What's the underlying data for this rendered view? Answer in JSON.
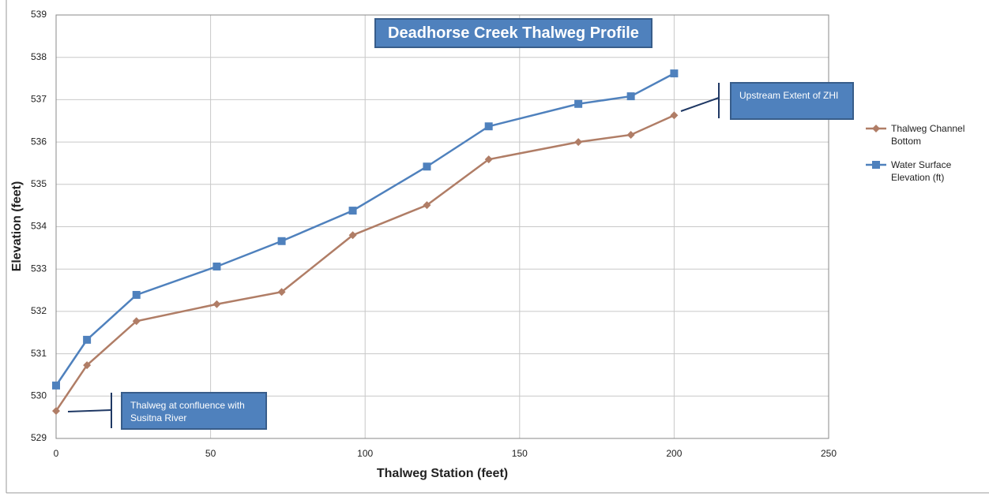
{
  "chart_data": {
    "type": "line",
    "title": "Deadhorse Creek Thalweg Profile",
    "x_label": "Thalweg Station (feet)",
    "y_label": "Elevation (feet)",
    "xlim": [
      0,
      250
    ],
    "xticks": [
      0,
      50,
      100,
      150,
      200,
      250
    ],
    "ylim": [
      529,
      539
    ],
    "yticks": [
      529,
      530,
      531,
      532,
      533,
      534,
      535,
      536,
      537,
      538,
      539
    ],
    "grid": true,
    "legend": "right",
    "annotations": [
      "Upstream Extent of  ZHI",
      "Thalweg at confluence with Susitna River"
    ],
    "x": [
      0,
      10,
      26,
      52,
      73,
      96,
      120,
      140,
      169,
      186,
      200
    ],
    "series": [
      {
        "name": "Thalweg Channel Bottom",
        "color": "#b07d66",
        "marker": "diamond",
        "values": [
          529.65,
          530.73,
          531.77,
          532.17,
          532.46,
          533.8,
          534.51,
          535.59,
          536.0,
          536.17,
          536.63
        ]
      },
      {
        "name": "Water Surface Elevation (ft)",
        "color": "#4f81bd",
        "marker": "square",
        "values": [
          530.25,
          531.33,
          532.39,
          533.06,
          533.66,
          534.38,
          535.42,
          536.37,
          536.9,
          537.08,
          537.62
        ]
      }
    ]
  }
}
